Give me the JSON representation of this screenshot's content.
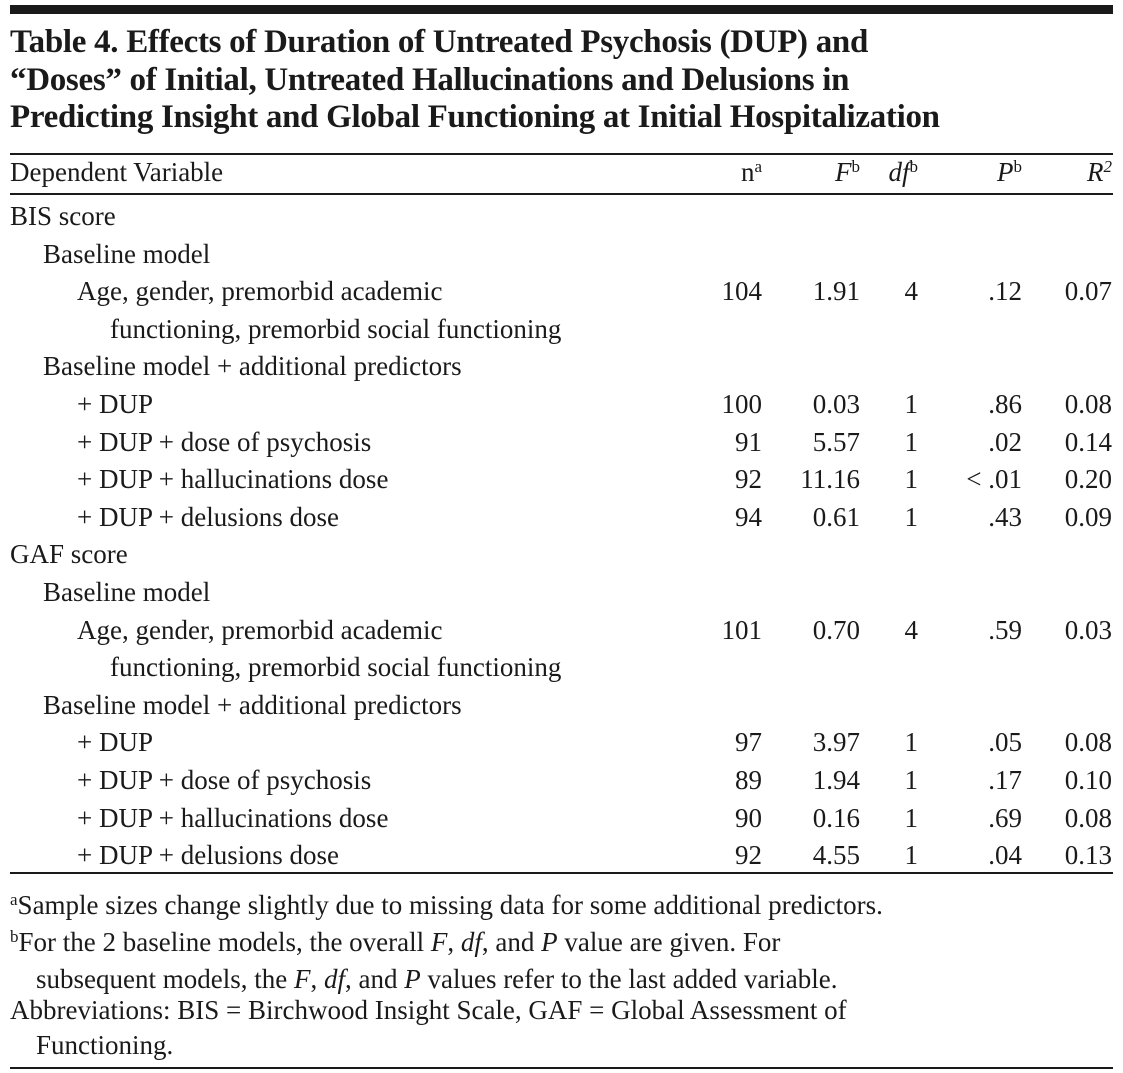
{
  "title": {
    "lines": [
      "Table 4. Effects of Duration of Untreated Psychosis (DUP) and",
      "“Doses” of Initial, Untreated Hallucinations and Delusions in",
      "Predicting Insight and Global Functioning at Initial Hospitalization"
    ]
  },
  "header": {
    "dependent_variable": "Dependent Variable",
    "n": "n",
    "n_sup": "a",
    "F": "F",
    "F_sup": "b",
    "df": "df",
    "df_sup": "b",
    "P": "P",
    "P_sup": "b",
    "R2": "R",
    "R2_sup": "2"
  },
  "rows": [
    {
      "label": "BIS score",
      "indent": 0
    },
    {
      "label": "Baseline model",
      "indent": 1
    },
    {
      "label": "Age, gender, premorbid academic",
      "indent": 2,
      "n": "104",
      "F": "1.91",
      "df": "4",
      "P": ".12",
      "R2": "0.07"
    },
    {
      "label": "functioning, premorbid social functioning",
      "indent": 3
    },
    {
      "label": "Baseline model + additional predictors",
      "indent": 1
    },
    {
      "label": "+ DUP",
      "indent": 2,
      "n": "100",
      "F": "0.03",
      "df": "1",
      "P": ".86",
      "R2": "0.08"
    },
    {
      "label": "+ DUP + dose of psychosis",
      "indent": 2,
      "n": "91",
      "F": "5.57",
      "df": "1",
      "P": ".02",
      "R2": "0.14"
    },
    {
      "label": "+ DUP + hallucinations dose",
      "indent": 2,
      "n": "92",
      "F": "11.16",
      "df": "1",
      "P": "< .01",
      "R2": "0.20"
    },
    {
      "label": "+ DUP + delusions dose",
      "indent": 2,
      "n": "94",
      "F": "0.61",
      "df": "1",
      "P": ".43",
      "R2": "0.09"
    },
    {
      "label": "GAF score",
      "indent": 0
    },
    {
      "label": "Baseline model",
      "indent": 1
    },
    {
      "label": "Age, gender, premorbid academic",
      "indent": 2,
      "n": "101",
      "F": "0.70",
      "df": "4",
      "P": ".59",
      "R2": "0.03"
    },
    {
      "label": "functioning, premorbid social functioning",
      "indent": 3
    },
    {
      "label": "Baseline model + additional predictors",
      "indent": 1
    },
    {
      "label": "+ DUP",
      "indent": 2,
      "n": "97",
      "F": "3.97",
      "df": "1",
      "P": ".05",
      "R2": "0.08"
    },
    {
      "label": "+ DUP + dose of psychosis",
      "indent": 2,
      "n": "89",
      "F": "1.94",
      "df": "1",
      "P": ".17",
      "R2": "0.10"
    },
    {
      "label": "+ DUP + hallucinations dose",
      "indent": 2,
      "n": "90",
      "F": "0.16",
      "df": "1",
      "P": ".69",
      "R2": "0.08"
    },
    {
      "label": "+ DUP + delusions dose",
      "indent": 2,
      "n": "92",
      "F": "4.55",
      "df": "1",
      "P": ".04",
      "R2": "0.13"
    }
  ],
  "footnotes": {
    "a_mark": "a",
    "a_text": "Sample sizes change slightly due to missing data for some additional predictors.",
    "b_mark": "b",
    "b_line1": "For the 2 baseline models, the overall F, df, and P value are given. For",
    "b_line2": "subsequent models, the F, df, and P values refer to the last added variable.",
    "abbr_line1": "Abbreviations: BIS = Birchwood Insight Scale, GAF = Global Assessment of",
    "abbr_line2": "Functioning."
  }
}
